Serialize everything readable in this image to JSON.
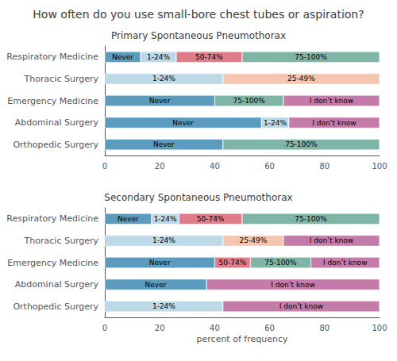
{
  "title": "How often do you use small-bore chest tubes or aspiration?",
  "chart_data": [
    {
      "type": "bar",
      "orientation": "horizontal",
      "stacked": true,
      "grid": false,
      "title": "Primary Spontaneous Pneumothorax",
      "categories": [
        "Respiratory Medicine",
        "Thoracic Surgery",
        "Emergency Medicine",
        "Abdominal Surgery",
        "Orthopedic Surgery"
      ],
      "series": [
        {
          "name": "Never",
          "color": "#5B9BBD",
          "values": [
            13,
            null,
            40,
            57,
            43
          ],
          "value_labels": [
            "Never",
            null,
            "Never",
            "Never",
            "Never"
          ]
        },
        {
          "name": "1-24%",
          "color": "#BDD9E8",
          "values": [
            13,
            43,
            null,
            10,
            null
          ],
          "value_labels": [
            "1-24%",
            "1-24%",
            null,
            "1-24%",
            null
          ]
        },
        {
          "name": "25-49%",
          "color": "#F5C5B0",
          "values": [
            null,
            57,
            null,
            null,
            null
          ],
          "value_labels": [
            null,
            "25-49%",
            null,
            null,
            null
          ]
        },
        {
          "name": "50-74%",
          "color": "#E07B8A",
          "values": [
            24,
            null,
            null,
            null,
            null
          ],
          "value_labels": [
            "50-74%",
            null,
            null,
            null,
            null
          ]
        },
        {
          "name": "75-100%",
          "color": "#7EB5A6",
          "values": [
            50,
            null,
            25,
            null,
            57
          ],
          "value_labels": [
            "75-100%",
            null,
            "75-100%",
            null,
            "75-100%"
          ]
        },
        {
          "name": "I don’t know",
          "color": "#C47BAA",
          "values": [
            null,
            null,
            35,
            33,
            null
          ],
          "value_labels": [
            null,
            null,
            "I don’t know",
            "I don’t know",
            null
          ]
        }
      ],
      "xlim": [
        0,
        100
      ],
      "xticks": [
        0,
        20,
        40,
        60,
        80,
        100
      ]
    },
    {
      "type": "bar",
      "orientation": "horizontal",
      "stacked": true,
      "grid": false,
      "title": "Secondary Spontaneous Pneumothorax",
      "xlabel": "percent of frequency",
      "categories": [
        "Respiratory Medicine",
        "Thoracic Surgery",
        "Emergency Medicine",
        "Abdominal Surgery",
        "Orthopedic Surgery"
      ],
      "series": [
        {
          "name": "Never",
          "color": "#5B9BBD",
          "values": [
            17,
            null,
            40,
            37,
            null
          ],
          "value_labels": [
            "Never",
            null,
            "Never",
            "Never",
            null
          ]
        },
        {
          "name": "1-24%",
          "color": "#BDD9E8",
          "values": [
            10,
            43,
            null,
            null,
            43
          ],
          "value_labels": [
            "1-24%",
            "1-24%",
            null,
            null,
            "1-24%"
          ]
        },
        {
          "name": "25-49%",
          "color": "#F5C5B0",
          "values": [
            null,
            22,
            null,
            null,
            null
          ],
          "value_labels": [
            null,
            "25-49%",
            null,
            null,
            null
          ]
        },
        {
          "name": "50-74%",
          "color": "#E07B8A",
          "values": [
            23,
            null,
            13,
            null,
            null
          ],
          "value_labels": [
            "50-74%",
            null,
            "50-74%",
            null,
            null
          ]
        },
        {
          "name": "75-100%",
          "color": "#7EB5A6",
          "values": [
            50,
            null,
            22,
            null,
            null
          ],
          "value_labels": [
            "75-100%",
            null,
            "75-100%",
            null,
            null
          ]
        },
        {
          "name": "I don’t know",
          "color": "#C47BAA",
          "values": [
            null,
            35,
            25,
            63,
            57
          ],
          "value_labels": [
            null,
            "I don’t know",
            "I don’t know",
            "I don’t know",
            "I don’t know"
          ]
        }
      ],
      "xlim": [
        0,
        100
      ],
      "xticks": [
        0,
        20,
        40,
        60,
        80,
        100
      ]
    }
  ]
}
